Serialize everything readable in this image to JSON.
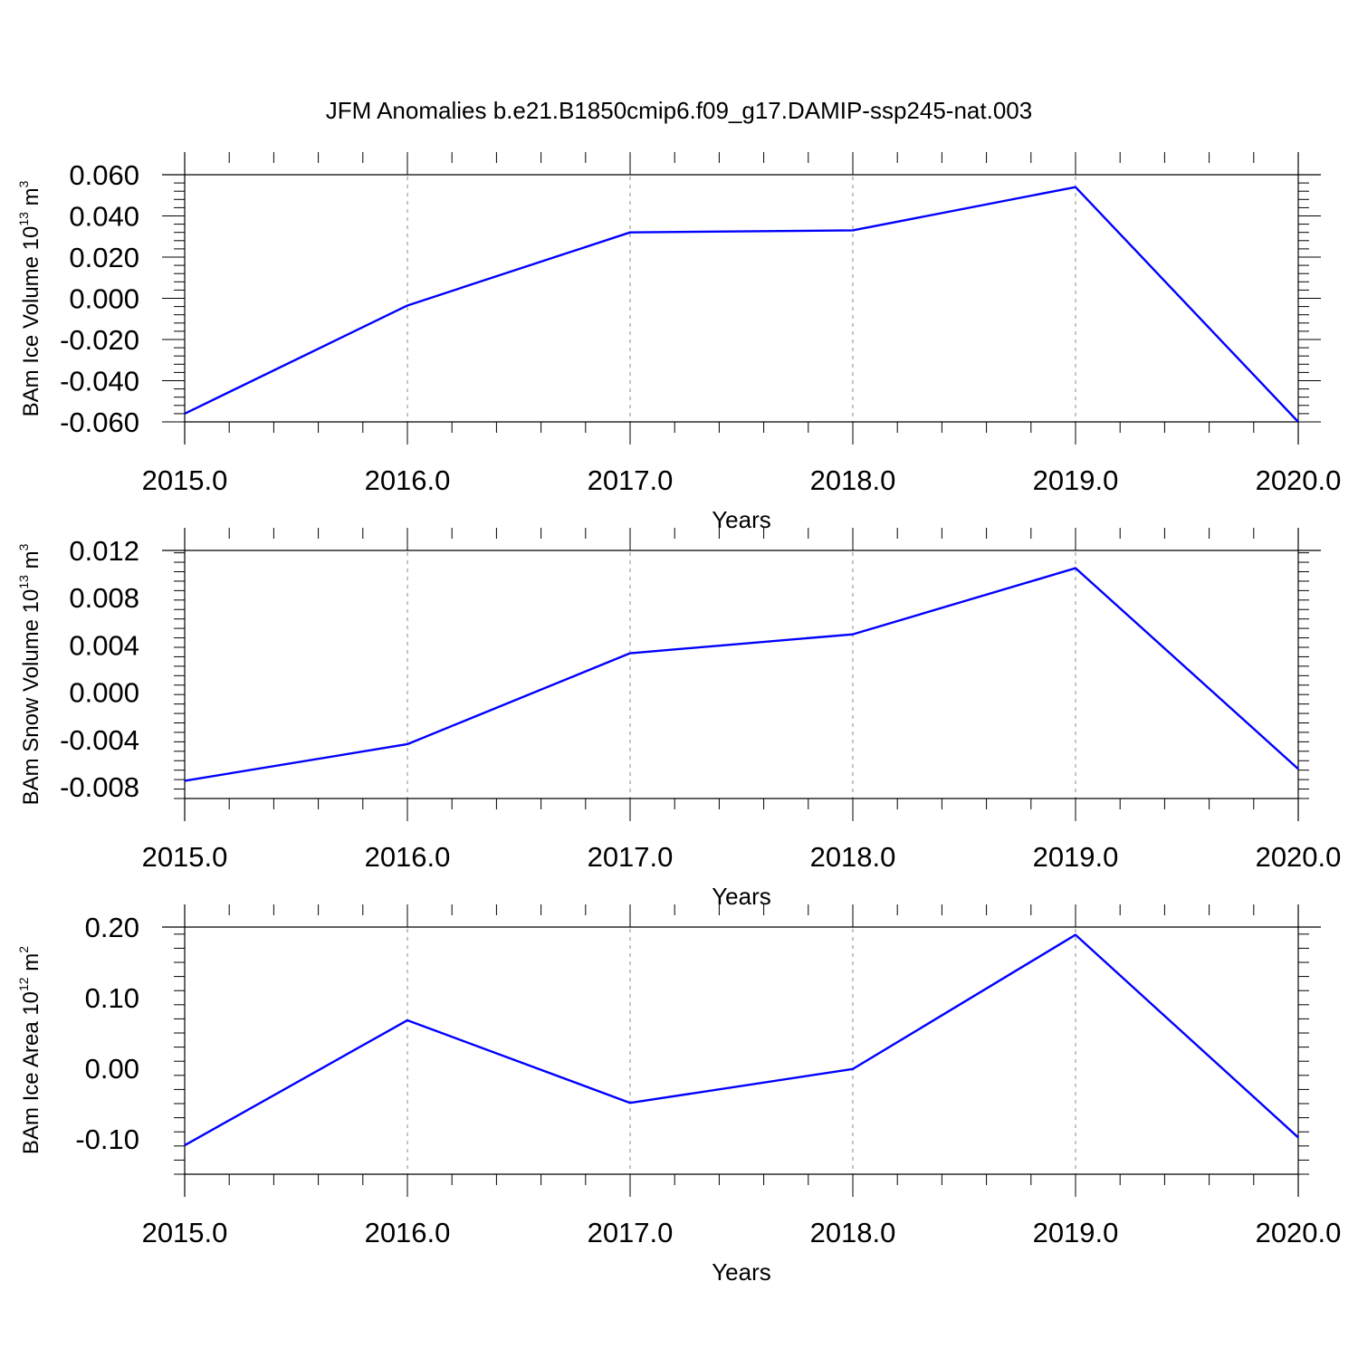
{
  "title": "JFM Anomalies b.e21.B1850cmip6.f09_g17.DAMIP-ssp245-nat.003",
  "series_color": "#0000ff",
  "chart_data": [
    {
      "type": "line",
      "ylabel_text": "BAm Ice Volume 10",
      "ylabel_sup": "13",
      "ylabel_unit": " m",
      "ylabel_unit_sup": "3",
      "xlabel": "Years",
      "x": [
        2015,
        2016,
        2017,
        2018,
        2019,
        2020
      ],
      "values": [
        -0.056,
        -0.0035,
        0.032,
        0.033,
        0.054,
        -0.06
      ],
      "xlim": [
        2015,
        2020
      ],
      "ylim": [
        -0.06,
        0.06
      ],
      "yticks": [
        0.06,
        0.04,
        0.02,
        0.0,
        -0.02,
        -0.04,
        -0.06
      ],
      "ytick_labels": [
        "0.060",
        "0.040",
        "0.020",
        "0.000",
        "-0.020",
        "-0.040",
        "-0.060"
      ],
      "xtick_labels": [
        "2015.0",
        "2016.0",
        "2017.0",
        "2018.0",
        "2019.0",
        "2020.0"
      ],
      "grid": "vertical dashed at major x ticks"
    },
    {
      "type": "line",
      "ylabel_text": "BAm Snow Volume 10",
      "ylabel_sup": "13",
      "ylabel_unit": " m",
      "ylabel_unit_sup": "3",
      "xlabel": "Years",
      "x": [
        2015,
        2016,
        2017,
        2018,
        2019,
        2020
      ],
      "values": [
        -0.0075,
        -0.0044,
        0.0033,
        0.0049,
        0.0105,
        -0.0065
      ],
      "xlim": [
        2015,
        2020
      ],
      "ylim": [
        -0.009,
        0.012
      ],
      "yticks": [
        0.012,
        0.008,
        0.004,
        0.0,
        -0.004,
        -0.008
      ],
      "ytick_labels": [
        "0.012",
        "0.008",
        "0.004",
        "0.000",
        "-0.004",
        "-0.008"
      ],
      "xtick_labels": [
        "2015.0",
        "2016.0",
        "2017.0",
        "2018.0",
        "2019.0",
        "2020.0"
      ],
      "grid": "vertical dashed at major x ticks"
    },
    {
      "type": "line",
      "ylabel_text": "BAm Ice Area 10",
      "ylabel_sup": "12",
      "ylabel_unit": " m",
      "ylabel_unit_sup": "2",
      "xlabel": "Years",
      "x": [
        2015,
        2016,
        2017,
        2018,
        2019,
        2020
      ],
      "values": [
        -0.109,
        0.068,
        -0.049,
        -0.001,
        0.189,
        -0.098
      ],
      "xlim": [
        2015,
        2020
      ],
      "ylim": [
        -0.15,
        0.2
      ],
      "yticks": [
        0.2,
        0.1,
        0.0,
        -0.1
      ],
      "ytick_labels": [
        "0.20",
        "0.10",
        "0.00",
        "-0.10"
      ],
      "xtick_labels": [
        "2015.0",
        "2016.0",
        "2017.0",
        "2018.0",
        "2019.0",
        "2020.0"
      ],
      "grid": "vertical dashed at major x ticks"
    }
  ]
}
